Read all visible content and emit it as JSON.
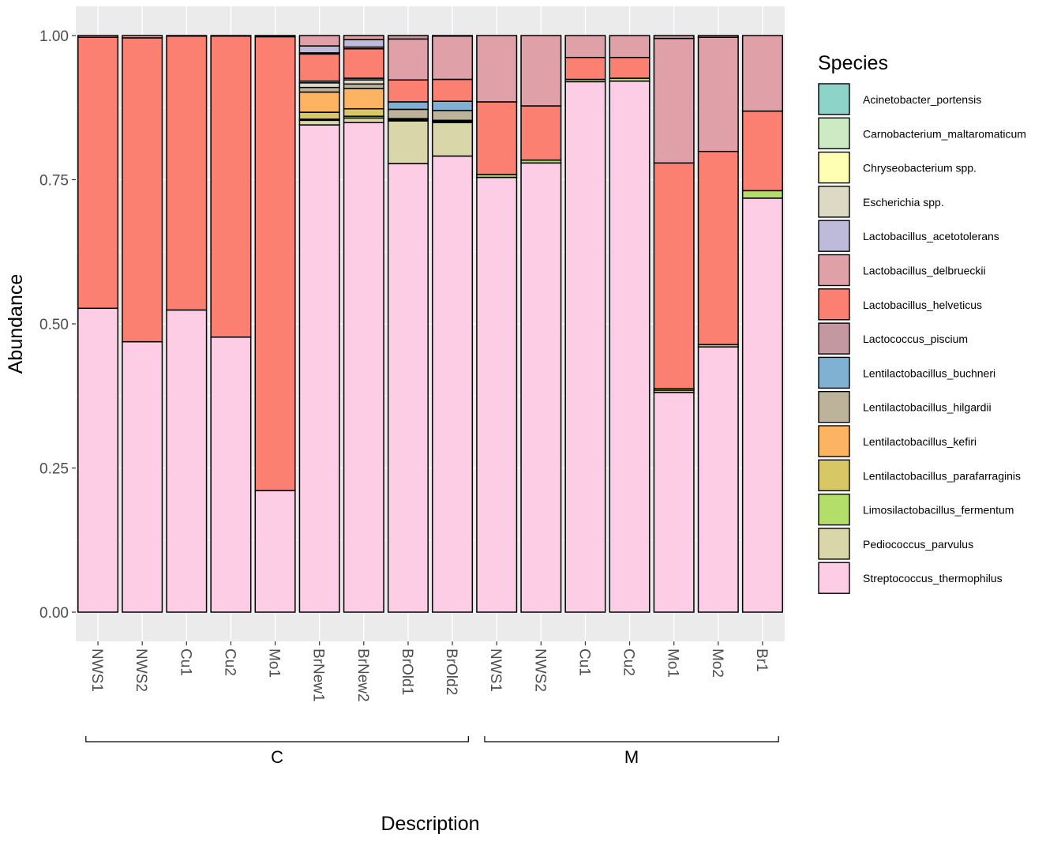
{
  "chart_data": {
    "type": "stacked-bar",
    "xlabel": "Description",
    "ylabel": "Abundance",
    "ylim": [
      0,
      1
    ],
    "yticks": [
      "0.00",
      "0.25",
      "0.50",
      "0.75",
      "1.00"
    ],
    "ytick_values": [
      0,
      0.25,
      0.5,
      0.75,
      1.0
    ],
    "legend_title": "Species",
    "species": [
      {
        "name": "Acinetobacter_portensis",
        "color": "#8dd3c7"
      },
      {
        "name": "Carnobacterium_maltaromaticum",
        "color": "#ccebc5"
      },
      {
        "name": "Chryseobacterium spp.",
        "color": "#ffffb3"
      },
      {
        "name": "Escherichia spp.",
        "color": "#dcdac5"
      },
      {
        "name": "Lactobacillus_acetotolerans",
        "color": "#bebada"
      },
      {
        "name": "Lactobacillus_delbrueckii",
        "color": "#dfa0a8"
      },
      {
        "name": "Lactobacillus_helveticus",
        "color": "#fb8072"
      },
      {
        "name": "Lactococcus_piscium",
        "color": "#c498a1"
      },
      {
        "name": "Lentilactobacillus_buchneri",
        "color": "#80b1d3"
      },
      {
        "name": "Lentilactobacillus_hilgardii",
        "color": "#bcb39a"
      },
      {
        "name": "Lentilactobacillus_kefiri",
        "color": "#fdb462"
      },
      {
        "name": "Lentilactobacillus_parafarraginis",
        "color": "#d7c765"
      },
      {
        "name": "Limosilactobacillus_fermentum",
        "color": "#b3de69"
      },
      {
        "name": "Pediococcus_parvulus",
        "color": "#d9d6a9"
      },
      {
        "name": "Streptococcus_thermophilus",
        "color": "#fccde5"
      }
    ],
    "groups": [
      {
        "label": "C",
        "categories": [
          "NWS1",
          "NWS2",
          "Cu1",
          "Cu2",
          "Mo1",
          "BrNew1",
          "BrNew2",
          "BrOld1",
          "BrOld2"
        ]
      },
      {
        "label": "M",
        "categories": [
          "NWS1",
          "NWS2",
          "Cu1",
          "Cu2",
          "Mo1",
          "Mo2",
          "Br1"
        ]
      }
    ],
    "bars": [
      {
        "category": "NWS1",
        "group": "C",
        "segments": [
          {
            "species": "Streptococcus_thermophilus",
            "value": 0.527
          },
          {
            "species": "Lactobacillus_helveticus",
            "value": 0.47
          },
          {
            "species": "Lactobacillus_delbrueckii",
            "value": 0.003
          }
        ]
      },
      {
        "category": "NWS2",
        "group": "C",
        "segments": [
          {
            "species": "Streptococcus_thermophilus",
            "value": 0.469
          },
          {
            "species": "Lactobacillus_helveticus",
            "value": 0.527
          },
          {
            "species": "Lactobacillus_delbrueckii",
            "value": 0.004
          }
        ]
      },
      {
        "category": "Cu1",
        "group": "C",
        "segments": [
          {
            "species": "Streptococcus_thermophilus",
            "value": 0.524
          },
          {
            "species": "Lactobacillus_helveticus",
            "value": 0.475
          },
          {
            "species": "Lactobacillus_delbrueckii",
            "value": 0.001
          }
        ]
      },
      {
        "category": "Cu2",
        "group": "C",
        "segments": [
          {
            "species": "Streptococcus_thermophilus",
            "value": 0.477
          },
          {
            "species": "Lactobacillus_helveticus",
            "value": 0.522
          },
          {
            "species": "Lactobacillus_delbrueckii",
            "value": 0.001
          }
        ]
      },
      {
        "category": "Mo1",
        "group": "C",
        "segments": [
          {
            "species": "Streptococcus_thermophilus",
            "value": 0.211
          },
          {
            "species": "Lactobacillus_helveticus",
            "value": 0.787
          },
          {
            "species": "Lactobacillus_delbrueckii",
            "value": 0.002
          }
        ]
      },
      {
        "category": "BrNew1",
        "group": "C",
        "segments": [
          {
            "species": "Streptococcus_thermophilus",
            "value": 0.845
          },
          {
            "species": "Pediococcus_parvulus",
            "value": 0.008
          },
          {
            "species": "Limosilactobacillus_fermentum",
            "value": 0.002
          },
          {
            "species": "Lentilactobacillus_parafarraginis",
            "value": 0.012
          },
          {
            "species": "Lentilactobacillus_kefiri",
            "value": 0.035
          },
          {
            "species": "Lentilactobacillus_hilgardii",
            "value": 0.008
          },
          {
            "species": "Escherichia spp.",
            "value": 0.008
          },
          {
            "species": "Lentilactobacillus_buchneri",
            "value": 0.003
          },
          {
            "species": "Lactobacillus_helveticus",
            "value": 0.047
          },
          {
            "species": "Lactococcus_piscium",
            "value": 0.002
          },
          {
            "species": "Lactobacillus_acetotolerans",
            "value": 0.012
          },
          {
            "species": "Lactobacillus_delbrueckii",
            "value": 0.018
          }
        ]
      },
      {
        "category": "BrNew2",
        "group": "C",
        "segments": [
          {
            "species": "Streptococcus_thermophilus",
            "value": 0.849
          },
          {
            "species": "Pediococcus_parvulus",
            "value": 0.008
          },
          {
            "species": "Limosilactobacillus_fermentum",
            "value": 0.003
          },
          {
            "species": "Lentilactobacillus_parafarraginis",
            "value": 0.013
          },
          {
            "species": "Lentilactobacillus_kefiri",
            "value": 0.035
          },
          {
            "species": "Lentilactobacillus_hilgardii",
            "value": 0.008
          },
          {
            "species": "Escherichia spp.",
            "value": 0.007
          },
          {
            "species": "Lentilactobacillus_buchneri",
            "value": 0.003
          },
          {
            "species": "Lactobacillus_helveticus",
            "value": 0.051
          },
          {
            "species": "Lactococcus_piscium",
            "value": 0.003
          },
          {
            "species": "Lactobacillus_acetotolerans",
            "value": 0.013
          },
          {
            "species": "Lactobacillus_delbrueckii",
            "value": 0.007
          }
        ]
      },
      {
        "category": "BrOld1",
        "group": "C",
        "segments": [
          {
            "species": "Streptococcus_thermophilus",
            "value": 0.778
          },
          {
            "species": "Pediococcus_parvulus",
            "value": 0.074
          },
          {
            "species": "Limosilactobacillus_fermentum",
            "value": 0.002
          },
          {
            "species": "Lentilactobacillus_parafarraginis",
            "value": 0.002
          },
          {
            "species": "Lentilactobacillus_hilgardii",
            "value": 0.016
          },
          {
            "species": "Lentilactobacillus_buchneri",
            "value": 0.013
          },
          {
            "species": "Lactobacillus_helveticus",
            "value": 0.038
          },
          {
            "species": "Lactobacillus_delbrueckii",
            "value": 0.071
          },
          {
            "species": "Lactococcus_piscium",
            "value": 0.006
          }
        ]
      },
      {
        "category": "BrOld2",
        "group": "C",
        "segments": [
          {
            "species": "Streptococcus_thermophilus",
            "value": 0.791
          },
          {
            "species": "Pediococcus_parvulus",
            "value": 0.058
          },
          {
            "species": "Limosilactobacillus_fermentum",
            "value": 0.002
          },
          {
            "species": "Lentilactobacillus_parafarraginis",
            "value": 0.002
          },
          {
            "species": "Lentilactobacillus_hilgardii",
            "value": 0.017
          },
          {
            "species": "Lentilactobacillus_buchneri",
            "value": 0.016
          },
          {
            "species": "Lactobacillus_helveticus",
            "value": 0.038
          },
          {
            "species": "Lactobacillus_delbrueckii",
            "value": 0.075
          },
          {
            "species": "Lactococcus_piscium",
            "value": 0.001
          }
        ]
      },
      {
        "category": "NWS1",
        "group": "M",
        "segments": [
          {
            "species": "Streptococcus_thermophilus",
            "value": 0.754
          },
          {
            "species": "Limosilactobacillus_fermentum",
            "value": 0.005
          },
          {
            "species": "Lactobacillus_helveticus",
            "value": 0.126
          },
          {
            "species": "Lactobacillus_delbrueckii",
            "value": 0.115
          }
        ]
      },
      {
        "category": "NWS2",
        "group": "M",
        "segments": [
          {
            "species": "Streptococcus_thermophilus",
            "value": 0.779
          },
          {
            "species": "Limosilactobacillus_fermentum",
            "value": 0.005
          },
          {
            "species": "Lactobacillus_helveticus",
            "value": 0.094
          },
          {
            "species": "Lactobacillus_delbrueckii",
            "value": 0.122
          }
        ]
      },
      {
        "category": "Cu1",
        "group": "M",
        "segments": [
          {
            "species": "Streptococcus_thermophilus",
            "value": 0.92
          },
          {
            "species": "Limosilactobacillus_fermentum",
            "value": 0.004
          },
          {
            "species": "Lactobacillus_helveticus",
            "value": 0.038
          },
          {
            "species": "Lactobacillus_delbrueckii",
            "value": 0.038
          }
        ]
      },
      {
        "category": "Cu2",
        "group": "M",
        "segments": [
          {
            "species": "Streptococcus_thermophilus",
            "value": 0.921
          },
          {
            "species": "Limosilactobacillus_fermentum",
            "value": 0.005
          },
          {
            "species": "Lactobacillus_helveticus",
            "value": 0.036
          },
          {
            "species": "Lactobacillus_delbrueckii",
            "value": 0.038
          }
        ]
      },
      {
        "category": "Mo1",
        "group": "M",
        "segments": [
          {
            "species": "Streptococcus_thermophilus",
            "value": 0.381
          },
          {
            "species": "Limosilactobacillus_fermentum",
            "value": 0.004
          },
          {
            "species": "Lentilactobacillus_parafarraginis",
            "value": 0.003
          },
          {
            "species": "Lactobacillus_helveticus",
            "value": 0.391
          },
          {
            "species": "Lactobacillus_delbrueckii",
            "value": 0.216
          },
          {
            "species": "Lactococcus_piscium",
            "value": 0.005
          }
        ]
      },
      {
        "category": "Mo2",
        "group": "M",
        "segments": [
          {
            "species": "Streptococcus_thermophilus",
            "value": 0.46
          },
          {
            "species": "Limosilactobacillus_fermentum",
            "value": 0.004
          },
          {
            "species": "Lactobacillus_helveticus",
            "value": 0.335
          },
          {
            "species": "Lactobacillus_delbrueckii",
            "value": 0.198
          },
          {
            "species": "Lactococcus_piscium",
            "value": 0.003
          }
        ]
      },
      {
        "category": "Br1",
        "group": "M",
        "segments": [
          {
            "species": "Streptococcus_thermophilus",
            "value": 0.718
          },
          {
            "species": "Limosilactobacillus_fermentum",
            "value": 0.013
          },
          {
            "species": "Lactobacillus_helveticus",
            "value": 0.138
          },
          {
            "species": "Lactobacillus_delbrueckii",
            "value": 0.131
          }
        ]
      }
    ]
  }
}
